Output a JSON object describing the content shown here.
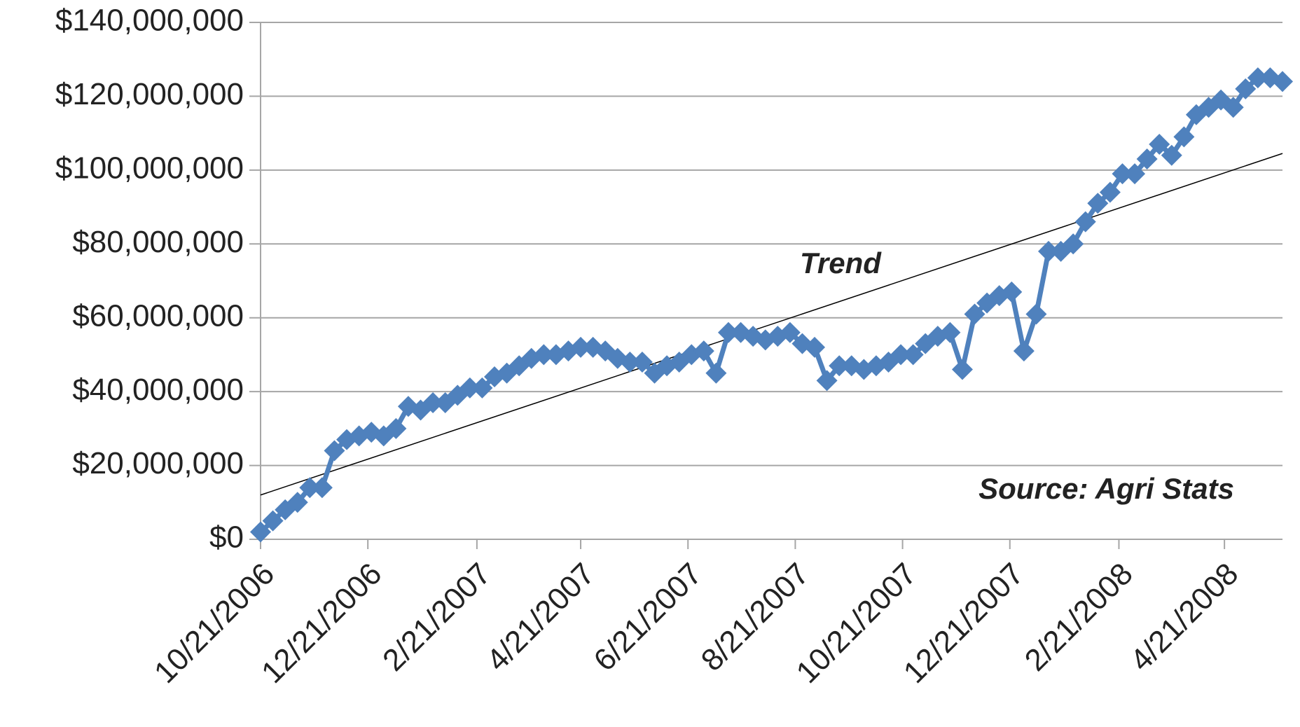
{
  "chart_data": {
    "type": "line",
    "x": [
      "10/21/2006",
      "10/28/2006",
      "11/4/2006",
      "11/11/2006",
      "11/18/2006",
      "11/25/2006",
      "12/2/2006",
      "12/9/2006",
      "12/16/2006",
      "12/23/2006",
      "12/30/2006",
      "1/6/2007",
      "1/13/2007",
      "1/20/2007",
      "1/27/2007",
      "2/3/2007",
      "2/10/2007",
      "2/17/2007",
      "2/24/2007",
      "3/3/2007",
      "3/10/2007",
      "3/17/2007",
      "3/24/2007",
      "3/31/2007",
      "4/7/2007",
      "4/14/2007",
      "4/21/2007",
      "4/28/2007",
      "5/5/2007",
      "5/12/2007",
      "5/19/2007",
      "5/26/2007",
      "6/2/2007",
      "6/9/2007",
      "6/16/2007",
      "6/23/2007",
      "6/30/2007",
      "7/7/2007",
      "7/14/2007",
      "7/21/2007",
      "7/28/2007",
      "8/4/2007",
      "8/11/2007",
      "8/18/2007",
      "8/25/2007",
      "9/1/2007",
      "9/8/2007",
      "9/15/2007",
      "9/22/2007",
      "9/29/2007",
      "10/6/2007",
      "10/13/2007",
      "10/20/2007",
      "10/27/2007",
      "11/3/2007",
      "11/10/2007",
      "11/17/2007",
      "11/24/2007",
      "12/1/2007",
      "12/8/2007",
      "12/15/2007",
      "12/22/2007",
      "12/29/2007",
      "1/5/2008",
      "1/12/2008",
      "1/19/2008",
      "1/26/2008",
      "2/2/2008",
      "2/9/2008",
      "2/16/2008",
      "2/23/2008",
      "3/1/2008",
      "3/8/2008",
      "3/15/2008",
      "3/22/2008",
      "3/29/2008",
      "4/5/2008",
      "4/12/2008",
      "4/19/2008",
      "4/26/2008",
      "5/3/2008",
      "5/10/2008",
      "5/17/2008",
      "5/24/2008"
    ],
    "series": [
      {
        "color": "#4f81bd",
        "values": [
          2000000,
          5000000,
          8000000,
          10000000,
          14000000,
          14000000,
          24000000,
          27000000,
          28000000,
          29000000,
          28000000,
          30000000,
          36000000,
          35000000,
          37000000,
          37000000,
          39000000,
          41000000,
          41000000,
          44000000,
          45000000,
          47000000,
          49000000,
          50000000,
          50000000,
          51000000,
          52000000,
          52000000,
          51000000,
          49000000,
          48000000,
          48000000,
          45000000,
          47000000,
          48000000,
          50000000,
          51000000,
          45000000,
          56000000,
          56000000,
          55000000,
          54000000,
          55000000,
          56000000,
          53000000,
          52000000,
          43000000,
          47000000,
          47000000,
          46000000,
          47000000,
          48000000,
          50000000,
          50000000,
          53000000,
          55000000,
          56000000,
          46000000,
          61000000,
          64000000,
          66000000,
          67000000,
          51000000,
          61000000,
          78000000,
          78000000,
          80000000,
          86000000,
          91000000,
          94000000,
          99000000,
          99000000,
          103000000,
          107000000,
          104000000,
          109000000,
          115000000,
          117000000,
          119000000,
          117000000,
          122000000,
          125000000,
          125000000,
          124000000
        ]
      }
    ],
    "trendline": {
      "label": "Trend",
      "values": [
        12000000,
        104500000
      ],
      "color": "#000000"
    },
    "annotations": [
      "Source: Agri Stats"
    ],
    "xlim": [
      "10/21/2006",
      "5/24/2008"
    ],
    "xticks": [
      "10/21/2006",
      "12/21/2006",
      "2/21/2007",
      "4/21/2007",
      "6/21/2007",
      "8/21/2007",
      "10/21/2007",
      "12/21/2007",
      "2/21/2008",
      "4/21/2008"
    ],
    "ylim": [
      0,
      140000000
    ],
    "yticks": [
      {
        "value": 0,
        "label": "$0"
      },
      {
        "value": 20000000,
        "label": "$20,000,000"
      },
      {
        "value": 40000000,
        "label": "$40,000,000"
      },
      {
        "value": 60000000,
        "label": "$60,000,000"
      },
      {
        "value": 80000000,
        "label": "$80,000,000"
      },
      {
        "value": 100000000,
        "label": "$100,000,000"
      },
      {
        "value": 120000000,
        "label": "$120,000,000"
      },
      {
        "value": 140000000,
        "label": "$140,000,000"
      }
    ],
    "grid": true
  }
}
